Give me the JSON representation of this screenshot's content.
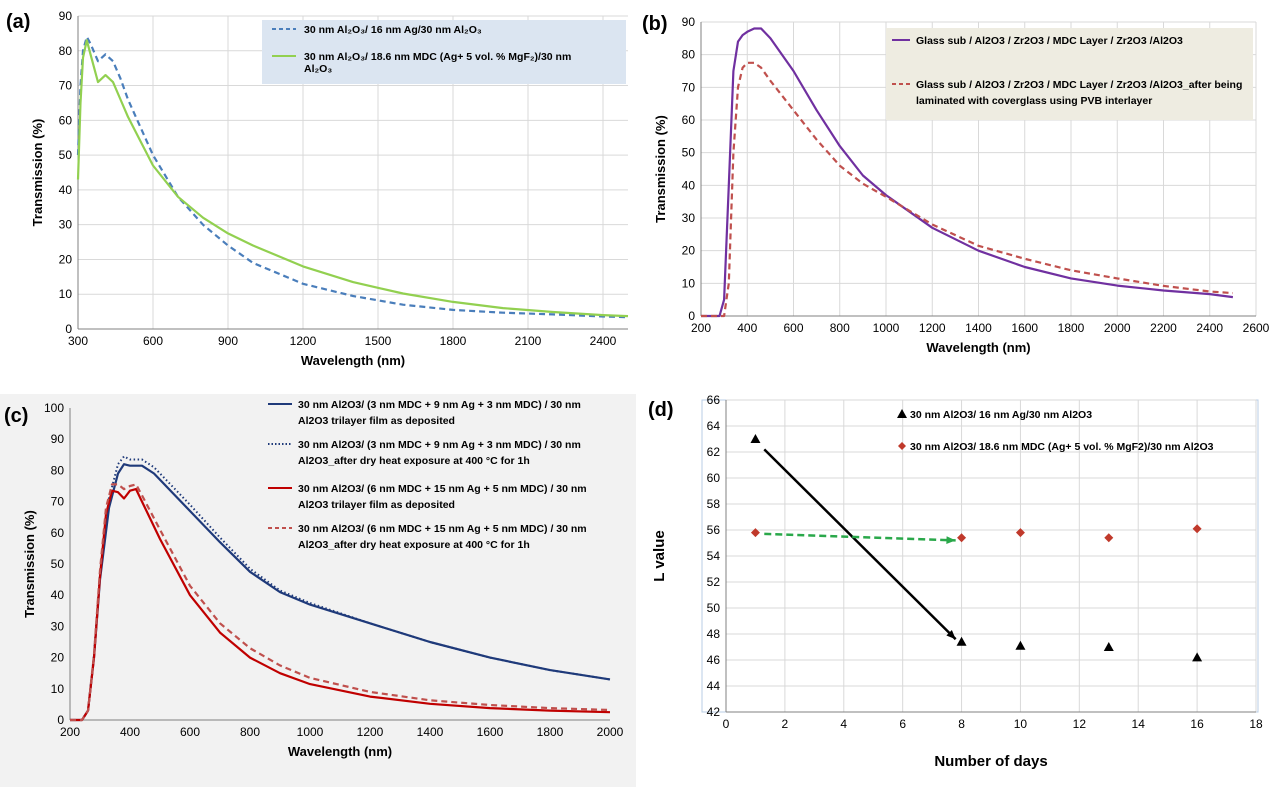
{
  "chart_data": [
    {
      "panel": "(a)",
      "type": "line",
      "xlabel": "Wavelength (nm)",
      "ylabel": "Transmission (%)",
      "xlim": [
        300,
        2500
      ],
      "ylim": [
        0,
        90
      ],
      "xticks": [
        300,
        600,
        900,
        1200,
        1500,
        1800,
        2100,
        2400
      ],
      "yticks": [
        0,
        10,
        20,
        30,
        40,
        50,
        60,
        70,
        80,
        90
      ],
      "grid": true,
      "legend_position": "top-right",
      "series": [
        {
          "name": "30 nm Al2O3/ 16 nm Ag/30 nm Al2O3",
          "legend_lines": [
            "30 nm Al₂O₃/ 16 nm Ag/30 nm Al₂O₃"
          ],
          "color": "#4a7ebb",
          "style": "dashed",
          "x": [
            300,
            310,
            320,
            335,
            350,
            380,
            410,
            440,
            470,
            500,
            550,
            600,
            700,
            800,
            900,
            1000,
            1200,
            1400,
            1600,
            1800,
            2000,
            2200,
            2400,
            2500
          ],
          "y": [
            50,
            70,
            80,
            84,
            82,
            77,
            79,
            77,
            72,
            66,
            58,
            50,
            38,
            30,
            24,
            19,
            13,
            9.5,
            7,
            5.5,
            4.7,
            4.2,
            3.6,
            3.4
          ]
        },
        {
          "name": "30 nm Al2O3/ 18.6 nm MDC (Ag+ 5 vol. % MgF2)/30 nm Al2O3",
          "legend_lines": [
            "30 nm Al₂O₃/ 18.6 nm MDC (Ag+ 5 vol. % MgF₂)/30 nm",
            "Al₂O₃"
          ],
          "color": "#92d050",
          "style": "solid",
          "x": [
            300,
            310,
            320,
            335,
            350,
            380,
            410,
            440,
            470,
            500,
            550,
            600,
            700,
            800,
            900,
            1000,
            1200,
            1400,
            1600,
            1800,
            2000,
            2200,
            2400,
            2500
          ],
          "y": [
            43,
            65,
            78,
            83,
            79,
            71,
            73,
            71,
            66,
            61,
            54,
            47,
            38,
            32,
            27.5,
            24,
            18,
            13.5,
            10.2,
            7.8,
            6.0,
            4.9,
            4.0,
            3.7
          ]
        }
      ]
    },
    {
      "panel": "(b)",
      "type": "line",
      "xlabel": "Wavelength (nm)",
      "ylabel": "Transmission (%)",
      "xlim": [
        200,
        2600
      ],
      "ylim": [
        0,
        90
      ],
      "xticks": [
        200,
        400,
        600,
        800,
        1000,
        1200,
        1400,
        1600,
        1800,
        2000,
        2200,
        2400,
        2600
      ],
      "yticks": [
        0,
        10,
        20,
        30,
        40,
        50,
        60,
        70,
        80,
        90
      ],
      "grid": true,
      "legend_position": "top-right",
      "series": [
        {
          "name": "Glass sub / Al2O3 / Zr2O3 / MDC Layer / Zr2O3 /Al2O3",
          "legend_lines": [
            "Glass sub / Al2O3 / Zr2O3 / MDC Layer / Zr2O3 /Al2O3"
          ],
          "color": "#7030a0",
          "style": "solid",
          "x": [
            200,
            280,
            300,
            320,
            340,
            360,
            380,
            400,
            430,
            460,
            500,
            600,
            700,
            800,
            900,
            1000,
            1200,
            1400,
            1600,
            1800,
            2000,
            2200,
            2400,
            2500
          ],
          "y": [
            0,
            0,
            5,
            40,
            75,
            84,
            86,
            87,
            88,
            88,
            85,
            75,
            63,
            52,
            43,
            37,
            27,
            20,
            15,
            11.5,
            9.3,
            7.8,
            6.7,
            5.8
          ]
        },
        {
          "name": "Glass sub / Al2O3 / Zr2O3 / MDC Layer / Zr2O3 /Al2O3_after being laminated with coverglass using PVB interlayer",
          "legend_lines": [
            "Glass sub / Al2O3 / Zr2O3 / MDC Layer / Zr2O3 /Al2O3_after being",
            "laminated with coverglass using PVB interlayer"
          ],
          "color": "#c0504d",
          "style": "dashed",
          "x": [
            200,
            300,
            320,
            340,
            360,
            380,
            400,
            430,
            460,
            500,
            600,
            700,
            800,
            900,
            1000,
            1200,
            1400,
            1600,
            1800,
            2000,
            2200,
            2400,
            2500
          ],
          "y": [
            0,
            0,
            10,
            50,
            70,
            76,
            77.5,
            77.5,
            76,
            72,
            63,
            54,
            46,
            40.5,
            36.5,
            28,
            21.5,
            17.5,
            14,
            11.5,
            9.2,
            7.5,
            7.0
          ]
        }
      ]
    },
    {
      "panel": "(c)",
      "type": "line",
      "xlabel": "Wavelength (nm)",
      "ylabel": "Transmission (%)",
      "xlim": [
        200,
        2000
      ],
      "ylim": [
        0,
        100
      ],
      "xticks": [
        200,
        400,
        600,
        800,
        1000,
        1200,
        1400,
        1600,
        1800,
        2000
      ],
      "yticks": [
        0,
        10,
        20,
        30,
        40,
        50,
        60,
        70,
        80,
        90,
        100
      ],
      "grid": false,
      "legend_position": "top-right",
      "series": [
        {
          "name": "30 nm Al2O3/ (3 nm MDC + 9 nm Ag + 3 nm MDC) / 30 nm Al2O3 trilayer film as deposited",
          "legend_lines": [
            "30 nm Al2O3/ (3 nm MDC + 9 nm Ag + 3 nm MDC) / 30 nm",
            "Al2O3 trilayer film as deposited"
          ],
          "color": "#1f3a7a",
          "style": "solid",
          "x": [
            200,
            240,
            260,
            280,
            300,
            330,
            360,
            380,
            400,
            440,
            480,
            500,
            600,
            700,
            800,
            900,
            1000,
            1200,
            1400,
            1600,
            1800,
            2000
          ],
          "y": [
            0,
            0,
            3,
            20,
            45,
            68,
            79,
            82,
            81.5,
            81.5,
            79,
            77,
            67,
            57,
            47.5,
            41,
            37,
            31,
            25,
            20,
            16,
            13
          ]
        },
        {
          "name": "30 nm Al2O3/ (3 nm MDC + 9 nm Ag + 3 nm MDC) / 30 nm Al2O3_after dry heat exposure at 400 °C for 1h",
          "legend_lines": [
            "30 nm Al2O3/ (3 nm MDC + 9 nm Ag + 3 nm MDC) / 30 nm",
            "Al2O3_after dry heat exposure at 400 °C for 1h"
          ],
          "color": "#1f3a7a",
          "style": "dotted",
          "x": [
            200,
            240,
            260,
            280,
            300,
            330,
            360,
            380,
            400,
            440,
            480,
            500,
            600,
            700,
            800,
            900,
            1000,
            1200,
            1400,
            1600,
            1800,
            2000
          ],
          "y": [
            0,
            0,
            3,
            21,
            47,
            71,
            82,
            84.5,
            83.5,
            83.5,
            81,
            79,
            69,
            58.5,
            48.5,
            41.5,
            37.5,
            31,
            25,
            20,
            16,
            13
          ]
        },
        {
          "name": "30 nm Al2O3/ (6 nm MDC + 15 nm Ag + 5 nm MDC) / 30 nm Al2O3 trilayer film as deposited",
          "legend_lines": [
            "30 nm Al2O3/ (6 nm MDC + 15 nm Ag + 5 nm MDC) / 30 nm",
            "Al2O3 trilayer film as deposited"
          ],
          "color": "#c00000",
          "style": "solid",
          "x": [
            200,
            240,
            260,
            280,
            300,
            320,
            340,
            360,
            380,
            400,
            420,
            440,
            500,
            600,
            700,
            800,
            900,
            1000,
            1200,
            1400,
            1600,
            1800,
            2000
          ],
          "y": [
            0,
            0,
            3,
            20,
            46,
            66,
            73.5,
            73,
            71,
            73.5,
            74,
            70,
            58,
            40,
            28,
            20,
            15,
            11.5,
            7.5,
            5.2,
            3.8,
            3.0,
            2.5
          ]
        },
        {
          "name": "30 nm Al2O3/ (6 nm MDC + 15 nm Ag + 5 nm MDC) / 30 nm Al2O3_after dry heat exposure at 400 °C for 1h",
          "legend_lines": [
            "30 nm Al2O3/ (6 nm MDC + 15 nm Ag + 5 nm MDC) / 30 nm",
            "Al2O3_after dry heat exposure at 400 °C for 1h"
          ],
          "color": "#c0504d",
          "style": "dashed",
          "x": [
            200,
            240,
            260,
            280,
            300,
            320,
            340,
            360,
            380,
            400,
            420,
            440,
            500,
            600,
            700,
            800,
            900,
            1000,
            1200,
            1400,
            1600,
            1800,
            2000
          ],
          "y": [
            0,
            0,
            3,
            21,
            48,
            68,
            75.5,
            75.5,
            74,
            75,
            75.5,
            72,
            61,
            43,
            31,
            23,
            17.5,
            13.5,
            9,
            6.3,
            4.8,
            3.8,
            3.2
          ]
        }
      ]
    },
    {
      "panel": "(d)",
      "type": "scatter",
      "xlabel": "Number of days",
      "ylabel": "L value",
      "xlim": [
        0,
        18
      ],
      "ylim": [
        42,
        66
      ],
      "xticks": [
        0,
        2,
        4,
        6,
        8,
        10,
        12,
        14,
        16,
        18
      ],
      "yticks": [
        42,
        44,
        46,
        48,
        50,
        52,
        54,
        56,
        58,
        60,
        62,
        64,
        66
      ],
      "grid": true,
      "legend_position": "top-right",
      "series": [
        {
          "name": "30 nm Al2O3/ 16 nm Ag/30 nm Al2O3",
          "marker": "triangle",
          "color": "#000000",
          "x": [
            1,
            8,
            10,
            13,
            16
          ],
          "y": [
            63,
            47.4,
            47.1,
            47.0,
            46.2
          ]
        },
        {
          "name": "30 nm Al2O3/ 18.6 nm MDC (Ag+ 5 vol. % MgF2)/30 nm Al2O3",
          "marker": "diamond",
          "color": "#c0392b",
          "x": [
            1,
            8,
            10,
            13,
            16
          ],
          "y": [
            55.8,
            55.4,
            55.8,
            55.4,
            56.1
          ]
        }
      ],
      "arrows": [
        {
          "from": [
            1.3,
            62.2
          ],
          "to": [
            7.8,
            47.6
          ],
          "color": "#000000",
          "style": "solid"
        },
        {
          "from": [
            1.3,
            55.7
          ],
          "to": [
            7.8,
            55.2
          ],
          "color": "#2aa84a",
          "style": "dashed"
        }
      ]
    }
  ]
}
